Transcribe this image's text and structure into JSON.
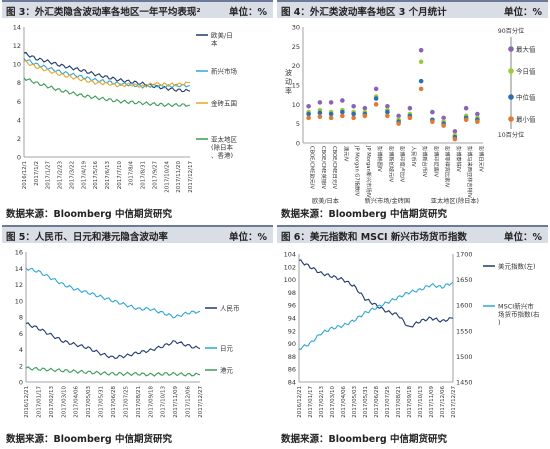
{
  "panels": [
    {
      "title": "图 3：外汇类隐含波动率各地区一年平均表现²",
      "unit": "单位：%",
      "source": "数据来源：Bloomberg 中信期货研究"
    },
    {
      "title": "图 4：外汇类波动率各地区 3 个月统计",
      "unit": "单位：%",
      "source": "数据来源：Bloomberg 中信期货研究"
    },
    {
      "title": "图 5：人民币、日元和港元隐含波动率",
      "unit": "单位：%",
      "source": "数据来源：Bloomberg 中信期货研究"
    },
    {
      "title": "图 6：美元指数和 MSCI 新兴市场货币指数",
      "unit": "单位：%",
      "source": "数据来源：Bloomberg 中信期货研究"
    }
  ],
  "chart_data": [
    {
      "type": "line",
      "x": [
        "2016/12/1",
        "2017/1/2",
        "2017/1/27",
        "2017/2/23",
        "2017/3/22",
        "2017/4/19",
        "2017/5/16",
        "2017/6/13",
        "2017/7/10",
        "2017/8/4",
        "2017/8/31",
        "2017/9/27",
        "2017/10/24",
        "2017/11/20",
        "2017/12/17"
      ],
      "ylim": [
        0,
        14
      ],
      "yticks": [
        0,
        2,
        4,
        6,
        8,
        10,
        12,
        14
      ],
      "grid": false,
      "legend": "right",
      "series": [
        {
          "name": "欧美/日本",
          "color": "#1f3a6e",
          "values": [
            11.2,
            10.6,
            10.3,
            9.9,
            9.6,
            9.3,
            8.9,
            8.6,
            8.3,
            8.1,
            7.9,
            7.6,
            7.4,
            7.2,
            7.1
          ]
        },
        {
          "name": "新兴市场",
          "color": "#2fa7d6",
          "values": [
            10.6,
            10.0,
            9.6,
            9.2,
            8.9,
            8.6,
            8.3,
            8.1,
            7.9,
            7.8,
            7.6,
            7.7,
            7.6,
            7.7,
            7.7
          ]
        },
        {
          "name": "金砖五国",
          "color": "#e7a626",
          "values": [
            10.3,
            9.7,
            9.3,
            8.9,
            8.6,
            8.3,
            8.0,
            7.9,
            7.7,
            7.8,
            7.6,
            7.9,
            7.8,
            7.8,
            8.0
          ]
        },
        {
          "name": "亚太地区(除日本、香港)",
          "color": "#3b9a56",
          "values": [
            8.5,
            8.0,
            7.6,
            7.2,
            6.9,
            6.6,
            6.4,
            6.2,
            6.0,
            5.9,
            5.8,
            5.7,
            5.6,
            5.6,
            5.6
          ]
        }
      ]
    },
    {
      "type": "scatter",
      "ylim": [
        0,
        30
      ],
      "yticks": [
        0,
        5,
        10,
        15,
        20,
        25,
        30
      ],
      "ylabel": "波动率",
      "categories": [
        "CBOE/CME欧元IV",
        "CBOE/CME英镑IV",
        "CBOE/CME日元IV",
        "澳元IV",
        "JP Morgan G7指数IV",
        "JP Morgan新兴市场IV",
        "彭博韩圆IV",
        "彭博新加坡元IV",
        "彭博印度卢比IV",
        "人民币IV",
        "彭博新台币IV",
        "彭博印尼盾IV",
        "彭博菲律宾比索IV",
        "彭博泰铢IV",
        "彭博马来西亚林吉特IV",
        "彭博日元IV"
      ],
      "groups": [
        "欧美/日本",
        "新兴市场/金砖国",
        "亚太地区(除日本)"
      ],
      "legend_title_top": "90百分位",
      "legend_title_bottom": "10百分位",
      "series": [
        {
          "name": "最大值",
          "color": "#8a63b5",
          "values": [
            9.5,
            10.5,
            10.5,
            11,
            9.5,
            9,
            14,
            9.5,
            7,
            9,
            24,
            8,
            6.5,
            3,
            9,
            7.5
          ]
        },
        {
          "name": "今日值",
          "color": "#9acc3a",
          "values": [
            8,
            8.5,
            8,
            8.5,
            8,
            8,
            12,
            8.5,
            6,
            7.5,
            21,
            6,
            5.5,
            2,
            7,
            6.5
          ]
        },
        {
          "name": "中位值",
          "color": "#2a6fb5",
          "values": [
            7.5,
            7.8,
            7.5,
            8,
            7.5,
            7.5,
            11.5,
            8,
            5.5,
            7,
            16,
            6,
            5,
            1.5,
            6.5,
            6
          ]
        },
        {
          "name": "最小值",
          "color": "#e07a2e",
          "values": [
            6.5,
            6.8,
            6.5,
            7,
            6.5,
            7,
            10,
            7,
            5,
            6.5,
            14,
            5.5,
            4.5,
            1,
            6,
            5.5
          ]
        }
      ]
    },
    {
      "type": "line",
      "x": [
        "2016/12/21",
        "2017/01/17",
        "2017/02/13",
        "2017/03/10",
        "2017/04/06",
        "2017/05/03",
        "2017/05/31",
        "2017/06/28",
        "2017/07/25",
        "2017/08/21",
        "2017/09/18",
        "2017/10/13",
        "2017/11/09",
        "2017/12/06",
        "2017/12/27"
      ],
      "ylim": [
        0,
        16
      ],
      "yticks": [
        0,
        2,
        4,
        6,
        8,
        10,
        12,
        14,
        16
      ],
      "grid": false,
      "legend": "right",
      "series": [
        {
          "name": "人民币",
          "color": "#1f3a6e",
          "values": [
            7.2,
            6.6,
            5.8,
            5.0,
            4.6,
            4.2,
            3.5,
            3.0,
            3.2,
            3.6,
            3.9,
            4.4,
            5.0,
            4.5,
            4.1
          ]
        },
        {
          "name": "日元",
          "color": "#2fa7d6",
          "values": [
            14.0,
            13.6,
            12.8,
            12.0,
            11.4,
            11.0,
            10.5,
            10.0,
            9.5,
            9.0,
            9.0,
            8.5,
            8.0,
            8.5,
            8.7
          ]
        },
        {
          "name": "港元",
          "color": "#3b9a56",
          "values": [
            1.7,
            1.6,
            1.5,
            1.4,
            1.3,
            1.2,
            1.1,
            1.0,
            1.0,
            1.0,
            0.9,
            1.0,
            1.0,
            0.9,
            0.9
          ]
        }
      ]
    },
    {
      "type": "line",
      "x": [
        "2016/12/21",
        "2017/01/17",
        "2017/02/13",
        "2017/03/10",
        "2017/04/06",
        "2017/05/03",
        "2017/05/31",
        "2017/06/28",
        "2017/07/25",
        "2017/08/21",
        "2017/09/18",
        "2017/10/13",
        "2017/11/09",
        "2017/12/06",
        "2017/12/27"
      ],
      "ylim_left": [
        84,
        104
      ],
      "yticks_left": [
        84,
        86,
        88,
        90,
        92,
        94,
        96,
        98,
        100,
        102,
        104
      ],
      "ylim_right": [
        1450,
        1700
      ],
      "yticks_right": [
        1450,
        1500,
        1550,
        1600,
        1650,
        1700
      ],
      "grid": false,
      "legend": "right",
      "series": [
        {
          "name": "美元指数(左)",
          "color": "#1f3a6e",
          "axis": "left",
          "values": [
            103,
            102,
            101,
            100.5,
            100,
            99,
            97,
            96,
            95,
            94.5,
            92.5,
            93.5,
            94,
            93.5,
            94
          ]
        },
        {
          "name": "MSCI新兴市场货币指数(右)",
          "color": "#2fa7d6",
          "axis": "right",
          "values": [
            1515,
            1525,
            1545,
            1555,
            1560,
            1570,
            1585,
            1595,
            1605,
            1615,
            1625,
            1630,
            1640,
            1635,
            1645
          ]
        }
      ]
    }
  ]
}
